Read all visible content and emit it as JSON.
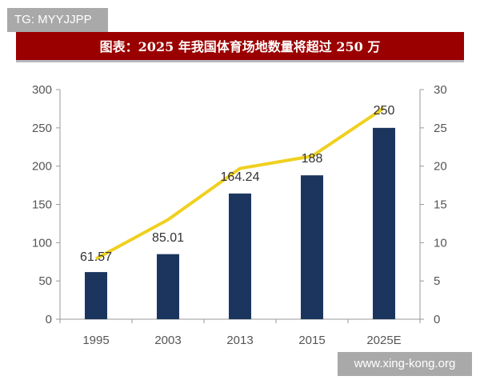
{
  "watermark_top": "TG: MYYJJPP",
  "watermark_bottom": "www.xing-kong.org",
  "chart_data": {
    "type": "bar",
    "title": "图表：2025 年我国体育场地数量将超过 250 万",
    "categories": [
      "1995",
      "2003",
      "2013",
      "2015",
      "2025E"
    ],
    "series": [
      {
        "type": "bar",
        "axis": "left",
        "values": [
          61.57,
          85.01,
          164.24,
          188,
          250
        ],
        "labels": [
          "61.57",
          "85.01",
          "164.24",
          "188",
          "250"
        ],
        "color": "#1b355e"
      },
      {
        "type": "line",
        "axis": "right",
        "values": [
          7.9,
          13.0,
          19.7,
          21.3,
          27.6
        ],
        "color": "#f0d020"
      }
    ],
    "ylim_left": [
      0,
      300
    ],
    "yticks_left": [
      "0",
      "50",
      "100",
      "150",
      "200",
      "250",
      "300"
    ],
    "ylim_right": [
      0,
      30
    ],
    "yticks_right": [
      "0",
      "5",
      "10",
      "15",
      "20",
      "25",
      "30"
    ],
    "grid": false,
    "legend": "none"
  }
}
